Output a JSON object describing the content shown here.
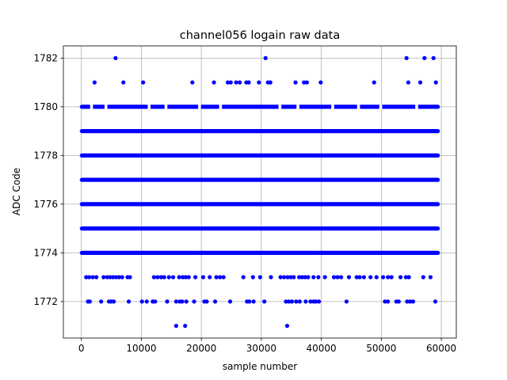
{
  "chart_data": {
    "type": "scatter",
    "title": "channel056 logain raw data",
    "xlabel": "sample number",
    "ylabel": "ADC Code",
    "xlim": [
      -3000,
      62500
    ],
    "ylim": [
      1770.5,
      1782.5
    ],
    "grid": true,
    "marker_color": "#0000ff",
    "x_ticks": [
      0,
      10000,
      20000,
      30000,
      40000,
      50000,
      60000
    ],
    "x_tick_labels": [
      "0",
      "10000",
      "20000",
      "30000",
      "40000",
      "50000",
      "60000"
    ],
    "y_ticks": [
      1772,
      1774,
      1776,
      1778,
      1780,
      1782
    ],
    "y_tick_labels": [
      "1772",
      "1774",
      "1776",
      "1778",
      "1780",
      "1782"
    ],
    "dense_levels": [
      {
        "y": 1774,
        "x_range": [
          0,
          59500
        ]
      },
      {
        "y": 1775,
        "x_range": [
          0,
          59500
        ]
      },
      {
        "y": 1776,
        "x_range": [
          0,
          59500
        ]
      },
      {
        "y": 1777,
        "x_range": [
          0,
          59500
        ]
      },
      {
        "y": 1778,
        "x_range": [
          0,
          59500
        ]
      },
      {
        "y": 1779,
        "x_range": [
          0,
          59500
        ]
      },
      {
        "y": 1780,
        "x_range": [
          0,
          59500
        ],
        "partial": true
      }
    ],
    "points": [
      {
        "x": 5700,
        "y": 1782
      },
      {
        "x": 30700,
        "y": 1782
      },
      {
        "x": 54200,
        "y": 1782
      },
      {
        "x": 57200,
        "y": 1782
      },
      {
        "x": 58700,
        "y": 1782
      },
      {
        "x": 2200,
        "y": 1781
      },
      {
        "x": 7000,
        "y": 1781
      },
      {
        "x": 10300,
        "y": 1781
      },
      {
        "x": 18500,
        "y": 1781
      },
      {
        "x": 22100,
        "y": 1781
      },
      {
        "x": 24400,
        "y": 1781
      },
      {
        "x": 24900,
        "y": 1781
      },
      {
        "x": 25800,
        "y": 1781
      },
      {
        "x": 26400,
        "y": 1781
      },
      {
        "x": 27500,
        "y": 1781
      },
      {
        "x": 27900,
        "y": 1781
      },
      {
        "x": 29600,
        "y": 1781
      },
      {
        "x": 31100,
        "y": 1781
      },
      {
        "x": 31500,
        "y": 1781
      },
      {
        "x": 35700,
        "y": 1781
      },
      {
        "x": 37100,
        "y": 1781
      },
      {
        "x": 37600,
        "y": 1781
      },
      {
        "x": 39900,
        "y": 1781
      },
      {
        "x": 48800,
        "y": 1781
      },
      {
        "x": 54500,
        "y": 1781
      },
      {
        "x": 56500,
        "y": 1781
      },
      {
        "x": 59100,
        "y": 1781
      },
      {
        "x": 800,
        "y": 1773
      },
      {
        "x": 1300,
        "y": 1773
      },
      {
        "x": 1900,
        "y": 1773
      },
      {
        "x": 2500,
        "y": 1773
      },
      {
        "x": 3700,
        "y": 1773
      },
      {
        "x": 4300,
        "y": 1773
      },
      {
        "x": 4800,
        "y": 1773
      },
      {
        "x": 5300,
        "y": 1773
      },
      {
        "x": 5800,
        "y": 1773
      },
      {
        "x": 6300,
        "y": 1773
      },
      {
        "x": 6800,
        "y": 1773
      },
      {
        "x": 7700,
        "y": 1773
      },
      {
        "x": 8100,
        "y": 1773
      },
      {
        "x": 12100,
        "y": 1773
      },
      {
        "x": 12700,
        "y": 1773
      },
      {
        "x": 13300,
        "y": 1773
      },
      {
        "x": 13800,
        "y": 1773
      },
      {
        "x": 14600,
        "y": 1773
      },
      {
        "x": 15300,
        "y": 1773
      },
      {
        "x": 16300,
        "y": 1773
      },
      {
        "x": 16900,
        "y": 1773
      },
      {
        "x": 17400,
        "y": 1773
      },
      {
        "x": 17900,
        "y": 1773
      },
      {
        "x": 19000,
        "y": 1773
      },
      {
        "x": 20300,
        "y": 1773
      },
      {
        "x": 21400,
        "y": 1773
      },
      {
        "x": 22500,
        "y": 1773
      },
      {
        "x": 23100,
        "y": 1773
      },
      {
        "x": 23700,
        "y": 1773
      },
      {
        "x": 27000,
        "y": 1773
      },
      {
        "x": 28600,
        "y": 1773
      },
      {
        "x": 29800,
        "y": 1773
      },
      {
        "x": 31600,
        "y": 1773
      },
      {
        "x": 33200,
        "y": 1773
      },
      {
        "x": 33800,
        "y": 1773
      },
      {
        "x": 34400,
        "y": 1773
      },
      {
        "x": 34900,
        "y": 1773
      },
      {
        "x": 35400,
        "y": 1773
      },
      {
        "x": 36300,
        "y": 1773
      },
      {
        "x": 36800,
        "y": 1773
      },
      {
        "x": 37300,
        "y": 1773
      },
      {
        "x": 37800,
        "y": 1773
      },
      {
        "x": 38700,
        "y": 1773
      },
      {
        "x": 39500,
        "y": 1773
      },
      {
        "x": 40600,
        "y": 1773
      },
      {
        "x": 42100,
        "y": 1773
      },
      {
        "x": 42700,
        "y": 1773
      },
      {
        "x": 43300,
        "y": 1773
      },
      {
        "x": 44600,
        "y": 1773
      },
      {
        "x": 45900,
        "y": 1773
      },
      {
        "x": 46400,
        "y": 1773
      },
      {
        "x": 47100,
        "y": 1773
      },
      {
        "x": 48200,
        "y": 1773
      },
      {
        "x": 49200,
        "y": 1773
      },
      {
        "x": 50300,
        "y": 1773
      },
      {
        "x": 51100,
        "y": 1773
      },
      {
        "x": 51700,
        "y": 1773
      },
      {
        "x": 53200,
        "y": 1773
      },
      {
        "x": 54100,
        "y": 1773
      },
      {
        "x": 54600,
        "y": 1773
      },
      {
        "x": 57000,
        "y": 1773
      },
      {
        "x": 58200,
        "y": 1773
      },
      {
        "x": 1100,
        "y": 1772
      },
      {
        "x": 1400,
        "y": 1772
      },
      {
        "x": 3300,
        "y": 1772
      },
      {
        "x": 4600,
        "y": 1772
      },
      {
        "x": 5000,
        "y": 1772
      },
      {
        "x": 5400,
        "y": 1772
      },
      {
        "x": 7900,
        "y": 1772
      },
      {
        "x": 10100,
        "y": 1772
      },
      {
        "x": 10900,
        "y": 1772
      },
      {
        "x": 11900,
        "y": 1772
      },
      {
        "x": 12300,
        "y": 1772
      },
      {
        "x": 14300,
        "y": 1772
      },
      {
        "x": 15800,
        "y": 1772
      },
      {
        "x": 16400,
        "y": 1772
      },
      {
        "x": 16800,
        "y": 1772
      },
      {
        "x": 17500,
        "y": 1772
      },
      {
        "x": 18800,
        "y": 1772
      },
      {
        "x": 20500,
        "y": 1772
      },
      {
        "x": 20900,
        "y": 1772
      },
      {
        "x": 22300,
        "y": 1772
      },
      {
        "x": 24800,
        "y": 1772
      },
      {
        "x": 27600,
        "y": 1772
      },
      {
        "x": 28000,
        "y": 1772
      },
      {
        "x": 28700,
        "y": 1772
      },
      {
        "x": 30500,
        "y": 1772
      },
      {
        "x": 34100,
        "y": 1772
      },
      {
        "x": 34600,
        "y": 1772
      },
      {
        "x": 35100,
        "y": 1772
      },
      {
        "x": 35800,
        "y": 1772
      },
      {
        "x": 36400,
        "y": 1772
      },
      {
        "x": 37400,
        "y": 1772
      },
      {
        "x": 38200,
        "y": 1772
      },
      {
        "x": 38700,
        "y": 1772
      },
      {
        "x": 39100,
        "y": 1772
      },
      {
        "x": 39600,
        "y": 1772
      },
      {
        "x": 44200,
        "y": 1772
      },
      {
        "x": 50600,
        "y": 1772
      },
      {
        "x": 51100,
        "y": 1772
      },
      {
        "x": 52500,
        "y": 1772
      },
      {
        "x": 52900,
        "y": 1772
      },
      {
        "x": 54300,
        "y": 1772
      },
      {
        "x": 54800,
        "y": 1772
      },
      {
        "x": 55300,
        "y": 1772
      },
      {
        "x": 59000,
        "y": 1772
      },
      {
        "x": 15800,
        "y": 1771
      },
      {
        "x": 17300,
        "y": 1771
      },
      {
        "x": 34300,
        "y": 1771
      }
    ]
  }
}
